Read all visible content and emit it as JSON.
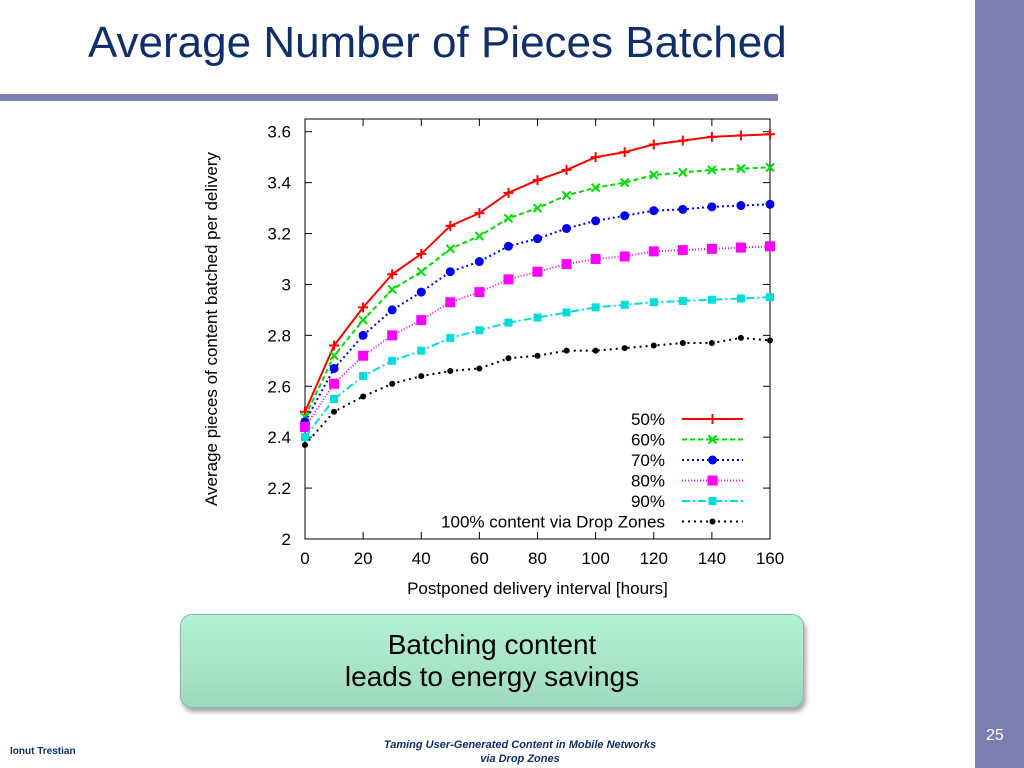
{
  "slide": {
    "title": "Average Number of Pieces Batched",
    "callout_line1": "Batching content",
    "callout_line2": "leads to energy savings",
    "footer_author": "Ionut Trestian",
    "footer_line1": "Taming User-Generated  Content in Mobile Networks",
    "footer_line2": "via Drop Zones",
    "page_number": "25",
    "accent_color": "#7b7fb0",
    "title_color": "#0f2e6b"
  },
  "chart_data": {
    "type": "line",
    "title": "",
    "xlabel": "Postponed delivery interval [hours]",
    "ylabel": "Average pieces of content batched per delivery",
    "xlim": [
      0,
      160
    ],
    "ylim": [
      2,
      3.65
    ],
    "xticks": [
      0,
      20,
      40,
      60,
      80,
      100,
      120,
      140,
      160
    ],
    "yticks": [
      2,
      2.2,
      2.4,
      2.6,
      2.8,
      3,
      3.2,
      3.4,
      3.6
    ],
    "ytick_labels": [
      "2",
      "2.2",
      "2.4",
      "2.6",
      "2.8",
      "3",
      "3.2",
      "3.4",
      "3.6"
    ],
    "grid": false,
    "legend_position": "bottom-right",
    "x": [
      0,
      10,
      20,
      30,
      40,
      50,
      60,
      70,
      80,
      90,
      100,
      110,
      120,
      130,
      140,
      150,
      160
    ],
    "series": [
      {
        "name": "50%",
        "color": "#ff0000",
        "marker": "plus",
        "dash": "",
        "values": [
          2.5,
          2.76,
          2.91,
          3.04,
          3.12,
          3.23,
          3.28,
          3.36,
          3.41,
          3.45,
          3.5,
          3.52,
          3.55,
          3.565,
          3.58,
          3.585,
          3.59
        ]
      },
      {
        "name": "60%",
        "color": "#00dd00",
        "marker": "x",
        "dash": "5,3",
        "values": [
          2.48,
          2.72,
          2.86,
          2.98,
          3.05,
          3.14,
          3.19,
          3.26,
          3.3,
          3.35,
          3.38,
          3.4,
          3.43,
          3.44,
          3.45,
          3.455,
          3.46
        ]
      },
      {
        "name": "70%",
        "color": "#0000ee",
        "marker": "circle",
        "dash": "2,3",
        "values": [
          2.46,
          2.67,
          2.8,
          2.9,
          2.97,
          3.05,
          3.09,
          3.15,
          3.18,
          3.22,
          3.25,
          3.27,
          3.29,
          3.295,
          3.305,
          3.31,
          3.315
        ]
      },
      {
        "name": "80%",
        "color": "#ff00ff",
        "marker": "square",
        "dash": "1,2",
        "values": [
          2.44,
          2.61,
          2.72,
          2.8,
          2.86,
          2.93,
          2.97,
          3.02,
          3.05,
          3.08,
          3.1,
          3.11,
          3.13,
          3.135,
          3.14,
          3.145,
          3.15
        ]
      },
      {
        "name": "90%",
        "color": "#00dddd",
        "marker": "square-small",
        "dash": "8,3,2,3",
        "values": [
          2.4,
          2.55,
          2.64,
          2.7,
          2.74,
          2.79,
          2.82,
          2.85,
          2.87,
          2.89,
          2.91,
          2.92,
          2.93,
          2.935,
          2.94,
          2.945,
          2.95
        ]
      },
      {
        "name": "100% content via Drop Zones",
        "color": "#000000",
        "marker": "dot",
        "dash": "2,4",
        "values": [
          2.37,
          2.5,
          2.56,
          2.61,
          2.64,
          2.66,
          2.67,
          2.71,
          2.72,
          2.74,
          2.74,
          2.75,
          2.76,
          2.77,
          2.77,
          2.79,
          2.78
        ]
      }
    ]
  }
}
